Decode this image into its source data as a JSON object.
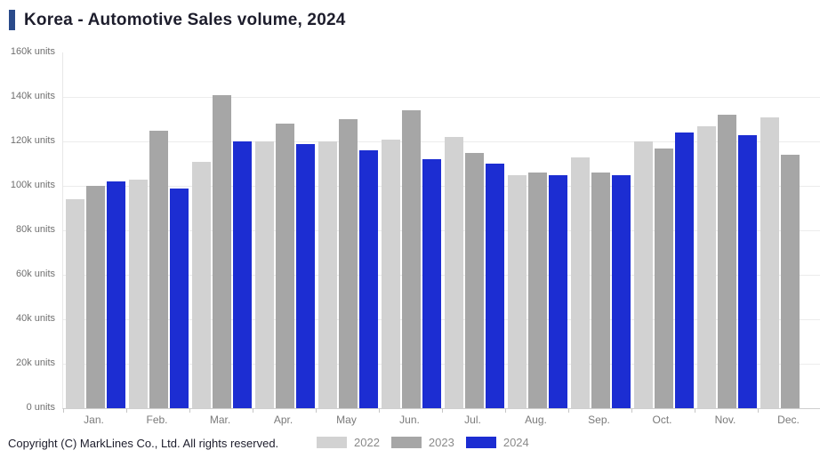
{
  "header": {
    "title": "Korea - Automotive Sales volume, 2024"
  },
  "footer": {
    "copyright": "Copyright (C) MarkLines Co., Ltd. All rights reserved."
  },
  "colors": {
    "title_marker": "#2a4a8a",
    "gridline": "#ececec",
    "axis_line": "#cfcfcf",
    "series_2022": "#d2d2d2",
    "series_2023": "#a6a6a6",
    "series_2024": "#1c2dd2"
  },
  "chart_data": {
    "type": "bar",
    "title": "Korea - Automotive Sales volume, 2024",
    "unit": "k units",
    "categories": [
      "Jan.",
      "Feb.",
      "Mar.",
      "Apr.",
      "May",
      "Jun.",
      "Jul.",
      "Aug.",
      "Sep.",
      "Oct.",
      "Nov.",
      "Dec."
    ],
    "series": [
      {
        "name": "2022",
        "color": "#d2d2d2",
        "values": [
          94,
          103,
          111,
          120,
          120,
          121,
          122,
          105,
          113,
          120,
          127,
          131
        ]
      },
      {
        "name": "2023",
        "color": "#a6a6a6",
        "values": [
          100,
          125,
          141,
          128,
          130,
          134,
          115,
          106,
          106,
          117,
          132,
          114
        ]
      },
      {
        "name": "2024",
        "color": "#1c2dd2",
        "values": [
          102,
          99,
          120,
          119,
          116,
          112,
          110,
          105,
          105,
          124,
          123,
          null
        ]
      }
    ],
    "y_ticks": [
      "160k units",
      "140k units",
      "120k units",
      "100k units",
      "80k units",
      "60k units",
      "40k units",
      "20k units",
      "0 units"
    ],
    "ylim": [
      0,
      160
    ],
    "y_step": 20,
    "grid": true,
    "legend_position": "bottom-center",
    "xlabel": "",
    "ylabel": "units"
  }
}
